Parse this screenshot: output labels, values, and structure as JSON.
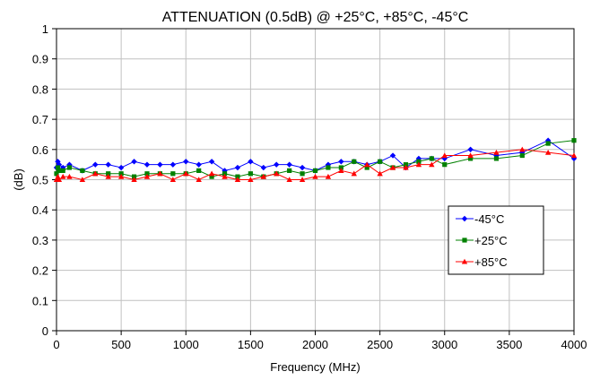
{
  "chart_data": {
    "type": "line",
    "title": "ATTENUATION (0.5dB) @ +25°C, +85°C, -45°C",
    "xlabel": "Frequency (MHz)",
    "ylabel": "(dB)",
    "xlim": [
      0,
      4000
    ],
    "ylim": [
      0,
      1
    ],
    "x_ticks": [
      "0",
      "500",
      "1000",
      "1500",
      "2000",
      "2500",
      "3000",
      "3500",
      "4000"
    ],
    "y_ticks": [
      "0",
      "0.1",
      "0.2",
      "0.3",
      "0.4",
      "0.5",
      "0.6",
      "0.7",
      "0.8",
      "0.9",
      "1"
    ],
    "grid": true,
    "legend_position": "right",
    "series": [
      {
        "name": "-45°C",
        "color": "#0000ff",
        "marker": "diamond",
        "x": [
          0,
          10,
          20,
          50,
          100,
          200,
          300,
          400,
          500,
          600,
          700,
          800,
          900,
          1000,
          1100,
          1200,
          1300,
          1400,
          1500,
          1600,
          1700,
          1800,
          1900,
          2000,
          2100,
          2200,
          2300,
          2400,
          2500,
          2600,
          2700,
          2800,
          2900,
          3000,
          3200,
          3400,
          3600,
          3800,
          4000
        ],
        "values": [
          0.54,
          0.56,
          0.55,
          0.54,
          0.55,
          0.53,
          0.55,
          0.55,
          0.54,
          0.56,
          0.55,
          0.55,
          0.55,
          0.56,
          0.55,
          0.56,
          0.53,
          0.54,
          0.56,
          0.54,
          0.55,
          0.55,
          0.54,
          0.53,
          0.55,
          0.56,
          0.56,
          0.55,
          0.56,
          0.58,
          0.54,
          0.57,
          0.57,
          0.57,
          0.6,
          0.58,
          0.59,
          0.63,
          0.57
        ]
      },
      {
        "name": "+25°C",
        "color": "#008000",
        "marker": "square",
        "x": [
          0,
          10,
          20,
          50,
          100,
          200,
          300,
          400,
          500,
          600,
          700,
          800,
          900,
          1000,
          1100,
          1200,
          1300,
          1400,
          1500,
          1600,
          1700,
          1800,
          1900,
          2000,
          2100,
          2200,
          2300,
          2400,
          2500,
          2600,
          2700,
          2800,
          2900,
          3000,
          3200,
          3400,
          3600,
          3800,
          4000
        ],
        "values": [
          0.52,
          0.54,
          0.53,
          0.53,
          0.54,
          0.53,
          0.52,
          0.52,
          0.52,
          0.51,
          0.52,
          0.52,
          0.52,
          0.52,
          0.53,
          0.51,
          0.52,
          0.51,
          0.52,
          0.51,
          0.52,
          0.53,
          0.52,
          0.53,
          0.54,
          0.54,
          0.56,
          0.54,
          0.56,
          0.54,
          0.55,
          0.56,
          0.57,
          0.55,
          0.57,
          0.57,
          0.58,
          0.62,
          0.63
        ]
      },
      {
        "name": "+85°C",
        "color": "#ff0000",
        "marker": "triangle",
        "x": [
          0,
          10,
          20,
          50,
          100,
          200,
          300,
          400,
          500,
          600,
          700,
          800,
          900,
          1000,
          1100,
          1200,
          1300,
          1400,
          1500,
          1600,
          1700,
          1800,
          1900,
          2000,
          2100,
          2200,
          2300,
          2400,
          2500,
          2600,
          2700,
          2800,
          2900,
          3000,
          3200,
          3400,
          3600,
          3800,
          4000
        ],
        "values": [
          0.5,
          0.51,
          0.5,
          0.51,
          0.51,
          0.5,
          0.52,
          0.51,
          0.51,
          0.5,
          0.51,
          0.52,
          0.5,
          0.52,
          0.5,
          0.52,
          0.51,
          0.5,
          0.5,
          0.51,
          0.52,
          0.5,
          0.5,
          0.51,
          0.51,
          0.53,
          0.52,
          0.55,
          0.52,
          0.54,
          0.54,
          0.55,
          0.55,
          0.58,
          0.58,
          0.59,
          0.6,
          0.59,
          0.58
        ]
      }
    ]
  }
}
